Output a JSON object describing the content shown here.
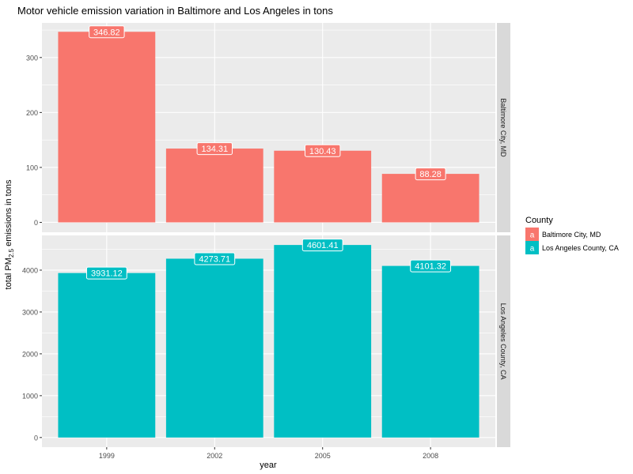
{
  "chart_data": {
    "type": "bar",
    "title": "Motor vehicle emission variation in Baltimore and Los Angeles in tons",
    "xlabel": "year",
    "ylabel_prefix": "total PM",
    "ylabel_subscript": "2.5",
    "ylabel_suffix": " emissions in tons",
    "categories": [
      "1999",
      "2002",
      "2005",
      "2008"
    ],
    "legend": {
      "title": "County",
      "placement": "right",
      "key_glyph": "a",
      "entries": [
        "Baltimore City, MD",
        "Los Angeles County, CA"
      ]
    },
    "grid": true,
    "colors": {
      "baltimore": "#F8766D",
      "losangeles": "#00BFC4",
      "panel_bg": "#EBEBEB",
      "strip_bg": "#D9D9D9"
    },
    "panels": [
      {
        "strip": "Baltimore City, MD",
        "values": [
          346.82,
          134.31,
          130.43,
          88.28
        ],
        "labels": [
          "346.82",
          "134.31",
          "130.43",
          "88.28"
        ],
        "ylim": [
          -18,
          363
        ],
        "yticks": [
          0,
          100,
          200,
          300
        ],
        "ytick_labels": [
          "0",
          "100",
          "200",
          "300"
        ]
      },
      {
        "strip": "Los Angeles County, CA",
        "values": [
          3931.12,
          4273.71,
          4601.41,
          4101.32
        ],
        "labels": [
          "3931.12",
          "4273.71",
          "4601.41",
          "4101.32"
        ],
        "ylim": [
          -230,
          4830
        ],
        "yticks": [
          0,
          1000,
          2000,
          3000,
          4000
        ],
        "ytick_labels": [
          "0",
          "1000",
          "2000",
          "3000",
          "4000"
        ]
      }
    ]
  }
}
